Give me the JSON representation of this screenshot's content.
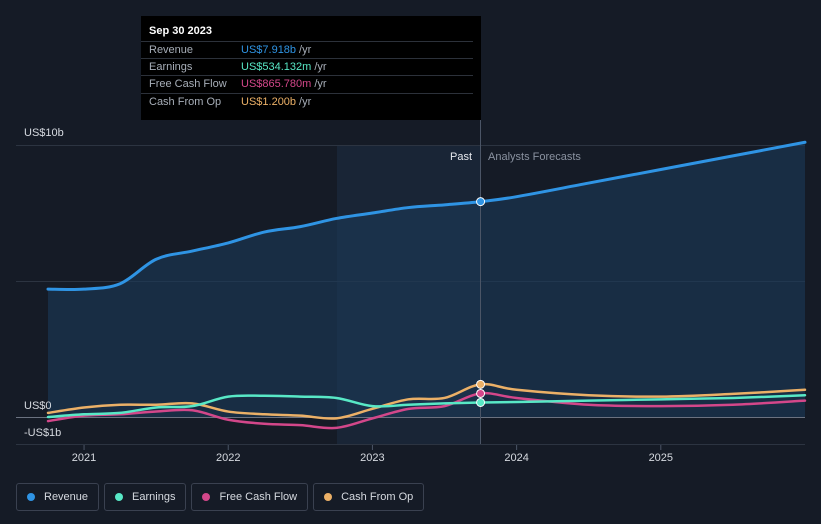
{
  "tooltip": {
    "date": "Sep 30 2023",
    "rows": [
      {
        "name": "Revenue",
        "value": "US$7.918b",
        "unit": "/yr",
        "color": "#2f94e4"
      },
      {
        "name": "Earnings",
        "value": "US$534.132m",
        "unit": "/yr",
        "color": "#58e8c6"
      },
      {
        "name": "Free Cash Flow",
        "value": "US$865.780m",
        "unit": "/yr",
        "color": "#d3478a"
      },
      {
        "name": "Cash From Op",
        "value": "US$1.200b",
        "unit": "/yr",
        "color": "#ebb067"
      }
    ]
  },
  "chart_data": {
    "type": "line",
    "y_tick_labels": [
      "US$10b",
      "US$0",
      "-US$1b"
    ],
    "ylim": [
      -1,
      10
    ],
    "x_tick_labels": [
      "2021",
      "2022",
      "2023",
      "2024",
      "2025"
    ],
    "region_labels": {
      "past": "Past",
      "forecast": "Analysts Forecasts"
    },
    "grid": true,
    "legend_position": "bottom-left",
    "divider_x": 2023.75,
    "series": [
      {
        "name": "Revenue",
        "color": "#2f94e4",
        "x": [
          2020.75,
          2021.0,
          2021.25,
          2021.5,
          2021.75,
          2022.0,
          2022.25,
          2022.5,
          2022.75,
          2023.0,
          2023.25,
          2023.5,
          2023.75,
          2024.0,
          2024.5,
          2025.0,
          2025.5,
          2026.0
        ],
        "y": [
          4.7,
          4.7,
          4.9,
          5.8,
          6.1,
          6.4,
          6.8,
          7.0,
          7.3,
          7.5,
          7.7,
          7.8,
          7.918,
          8.1,
          8.6,
          9.1,
          9.6,
          10.1
        ]
      },
      {
        "name": "Earnings",
        "color": "#58e8c6",
        "x": [
          2020.75,
          2021.0,
          2021.25,
          2021.5,
          2021.75,
          2022.0,
          2022.25,
          2022.5,
          2022.75,
          2023.0,
          2023.25,
          2023.5,
          2023.75,
          2024.0,
          2024.5,
          2025.0,
          2025.5,
          2026.0
        ],
        "y": [
          0.0,
          0.1,
          0.15,
          0.35,
          0.4,
          0.75,
          0.78,
          0.75,
          0.7,
          0.4,
          0.45,
          0.5,
          0.534,
          0.55,
          0.6,
          0.65,
          0.7,
          0.8
        ]
      },
      {
        "name": "Free Cash Flow",
        "color": "#d3478a",
        "x": [
          2020.75,
          2021.0,
          2021.25,
          2021.5,
          2021.75,
          2022.0,
          2022.25,
          2022.5,
          2022.75,
          2023.0,
          2023.25,
          2023.5,
          2023.75,
          2024.0,
          2024.5,
          2025.0,
          2025.5,
          2026.0
        ],
        "y": [
          -0.15,
          0.05,
          0.1,
          0.2,
          0.25,
          -0.1,
          -0.25,
          -0.3,
          -0.4,
          -0.05,
          0.3,
          0.4,
          0.866,
          0.7,
          0.45,
          0.4,
          0.45,
          0.6
        ]
      },
      {
        "name": "Cash From Op",
        "color": "#ebb067",
        "x": [
          2020.75,
          2021.0,
          2021.25,
          2021.5,
          2021.75,
          2022.0,
          2022.25,
          2022.5,
          2022.75,
          2023.0,
          2023.25,
          2023.5,
          2023.75,
          2024.0,
          2024.5,
          2025.0,
          2025.5,
          2026.0
        ],
        "y": [
          0.15,
          0.35,
          0.45,
          0.45,
          0.5,
          0.2,
          0.1,
          0.05,
          -0.05,
          0.3,
          0.65,
          0.7,
          1.2,
          1.0,
          0.8,
          0.75,
          0.85,
          1.0
        ]
      }
    ]
  },
  "legend": [
    {
      "label": "Revenue",
      "color": "#2f94e4"
    },
    {
      "label": "Earnings",
      "color": "#58e8c6"
    },
    {
      "label": "Free Cash Flow",
      "color": "#d3478a"
    },
    {
      "label": "Cash From Op",
      "color": "#ebb067"
    }
  ]
}
